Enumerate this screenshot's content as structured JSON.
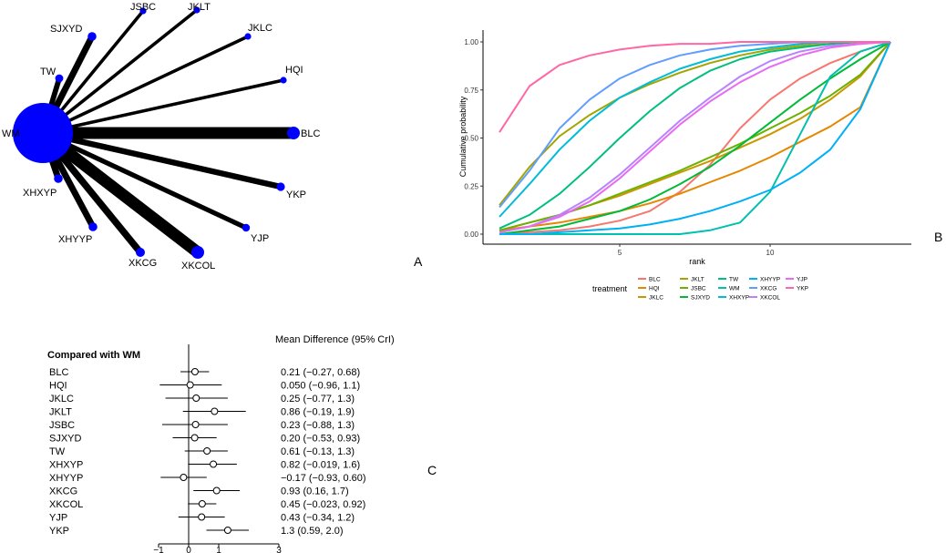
{
  "panel_labels": {
    "a": "A",
    "b": "B",
    "c": "C"
  },
  "chart_data": [
    {
      "type": "network",
      "center": "WM",
      "nodes": [
        {
          "name": "BLC",
          "weight": 1.0
        },
        {
          "name": "HQI",
          "weight": 0.15
        },
        {
          "name": "JKLC",
          "weight": 0.15
        },
        {
          "name": "JKLT",
          "weight": 0.15
        },
        {
          "name": "JSBC",
          "weight": 0.15
        },
        {
          "name": "SJXYD",
          "weight": 0.45
        },
        {
          "name": "TW",
          "weight": 0.35
        },
        {
          "name": "XHXYP",
          "weight": 0.45
        },
        {
          "name": "XHYYP",
          "weight": 0.45
        },
        {
          "name": "XKCG",
          "weight": 0.5
        },
        {
          "name": "XKCOL",
          "weight": 1.0
        },
        {
          "name": "YJP",
          "weight": 0.3
        },
        {
          "name": "YKP",
          "weight": 0.4
        }
      ]
    },
    {
      "type": "line",
      "xlabel": "rank",
      "ylabel": "Cumulative probability",
      "xlim": [
        1,
        14
      ],
      "ylim": [
        0,
        1
      ],
      "xticks": [
        5,
        10
      ],
      "yticks": [
        "0.00",
        "0.25",
        "0.50",
        "0.75",
        "1.00"
      ],
      "legend_title": "treatment",
      "x": [
        1,
        2,
        3,
        4,
        5,
        6,
        7,
        8,
        9,
        10,
        11,
        12,
        13,
        14
      ],
      "series": [
        {
          "name": "BLC",
          "color": "#F8766D",
          "values": [
            0.0,
            0.01,
            0.02,
            0.04,
            0.07,
            0.12,
            0.22,
            0.36,
            0.55,
            0.7,
            0.81,
            0.89,
            0.95,
            1.0
          ]
        },
        {
          "name": "HQI",
          "color": "#E58700",
          "values": [
            0.02,
            0.04,
            0.06,
            0.09,
            0.12,
            0.16,
            0.21,
            0.27,
            0.33,
            0.4,
            0.48,
            0.56,
            0.66,
            1.0
          ]
        },
        {
          "name": "JKLC",
          "color": "#C99800",
          "values": [
            0.02,
            0.06,
            0.1,
            0.15,
            0.2,
            0.26,
            0.32,
            0.38,
            0.45,
            0.52,
            0.6,
            0.7,
            0.82,
            1.0
          ]
        },
        {
          "name": "JKLT",
          "color": "#A3A500",
          "values": [
            0.15,
            0.35,
            0.51,
            0.62,
            0.71,
            0.78,
            0.84,
            0.89,
            0.93,
            0.96,
            0.98,
            0.99,
            1.0,
            1.0
          ]
        },
        {
          "name": "JSBC",
          "color": "#6BB100",
          "values": [
            0.02,
            0.06,
            0.1,
            0.15,
            0.21,
            0.27,
            0.33,
            0.4,
            0.47,
            0.55,
            0.63,
            0.72,
            0.83,
            1.0
          ]
        },
        {
          "name": "SJXYD",
          "color": "#00BA38",
          "values": [
            0.0,
            0.02,
            0.04,
            0.08,
            0.12,
            0.18,
            0.26,
            0.35,
            0.46,
            0.58,
            0.7,
            0.81,
            0.91,
            1.0
          ]
        },
        {
          "name": "TW",
          "color": "#00BF7D",
          "values": [
            0.03,
            0.1,
            0.21,
            0.35,
            0.5,
            0.64,
            0.76,
            0.85,
            0.91,
            0.95,
            0.97,
            0.99,
            1.0,
            1.0
          ]
        },
        {
          "name": "WM",
          "color": "#00C0AF",
          "values": [
            0.0,
            0.0,
            0.0,
            0.0,
            0.0,
            0.0,
            0.0,
            0.02,
            0.06,
            0.22,
            0.52,
            0.82,
            0.95,
            1.0
          ]
        },
        {
          "name": "XHXYP",
          "color": "#00BCD8",
          "values": [
            0.09,
            0.26,
            0.44,
            0.59,
            0.71,
            0.79,
            0.86,
            0.91,
            0.95,
            0.97,
            0.99,
            1.0,
            1.0,
            1.0
          ]
        },
        {
          "name": "XHYYP",
          "color": "#00B0F6",
          "values": [
            0.0,
            0.0,
            0.01,
            0.02,
            0.03,
            0.05,
            0.08,
            0.12,
            0.17,
            0.23,
            0.32,
            0.44,
            0.65,
            1.0
          ]
        },
        {
          "name": "XKCG",
          "color": "#619CFF",
          "values": [
            0.14,
            0.33,
            0.55,
            0.7,
            0.81,
            0.88,
            0.93,
            0.96,
            0.98,
            0.99,
            1.0,
            1.0,
            1.0,
            1.0
          ]
        },
        {
          "name": "XKCOL",
          "color": "#B983FF",
          "values": [
            0.01,
            0.04,
            0.1,
            0.19,
            0.31,
            0.45,
            0.59,
            0.71,
            0.82,
            0.9,
            0.95,
            0.98,
            0.99,
            1.0
          ]
        },
        {
          "name": "YJP",
          "color": "#E76BF3",
          "values": [
            0.01,
            0.04,
            0.09,
            0.17,
            0.29,
            0.43,
            0.57,
            0.69,
            0.79,
            0.87,
            0.93,
            0.97,
            0.99,
            1.0
          ]
        },
        {
          "name": "YKP",
          "color": "#FF67A4",
          "values": [
            0.53,
            0.77,
            0.88,
            0.93,
            0.96,
            0.98,
            0.99,
            0.99,
            1.0,
            1.0,
            1.0,
            1.0,
            1.0,
            1.0
          ]
        }
      ]
    },
    {
      "type": "forest",
      "title": "Mean Difference (95% CrI)",
      "subtitle": "Compared with WM",
      "xlim": [
        -1,
        3
      ],
      "xticks": [
        -1,
        0,
        1,
        3
      ],
      "rows": [
        {
          "name": "BLC",
          "est": 0.21,
          "lo": -0.27,
          "hi": 0.68,
          "label": "0.21 (−0.27, 0.68)"
        },
        {
          "name": "HQI",
          "est": 0.05,
          "lo": -0.96,
          "hi": 1.1,
          "label": "0.050 (−0.96, 1.1)"
        },
        {
          "name": "JKLC",
          "est": 0.25,
          "lo": -0.77,
          "hi": 1.3,
          "label": "0.25 (−0.77, 1.3)"
        },
        {
          "name": "JKLT",
          "est": 0.86,
          "lo": -0.19,
          "hi": 1.9,
          "label": "0.86 (−0.19, 1.9)"
        },
        {
          "name": "JSBC",
          "est": 0.23,
          "lo": -0.88,
          "hi": 1.3,
          "label": "0.23 (−0.88, 1.3)"
        },
        {
          "name": "SJXYD",
          "est": 0.2,
          "lo": -0.53,
          "hi": 0.93,
          "label": "0.20 (−0.53, 0.93)"
        },
        {
          "name": "TW",
          "est": 0.61,
          "lo": -0.13,
          "hi": 1.3,
          "label": "0.61 (−0.13, 1.3)"
        },
        {
          "name": "XHXYP",
          "est": 0.82,
          "lo": -0.019,
          "hi": 1.6,
          "label": "0.82 (−0.019, 1.6)"
        },
        {
          "name": "XHYYP",
          "est": -0.17,
          "lo": -0.93,
          "hi": 0.6,
          "label": "−0.17 (−0.93, 0.60)"
        },
        {
          "name": "XKCG",
          "est": 0.93,
          "lo": 0.16,
          "hi": 1.7,
          "label": "0.93 (0.16, 1.7)"
        },
        {
          "name": "XKCOL",
          "est": 0.45,
          "lo": -0.023,
          "hi": 0.92,
          "label": "0.45 (−0.023, 0.92)"
        },
        {
          "name": "YJP",
          "est": 0.43,
          "lo": -0.34,
          "hi": 1.2,
          "label": "0.43 (−0.34, 1.2)"
        },
        {
          "name": "YKP",
          "est": 1.3,
          "lo": 0.59,
          "hi": 2.0,
          "label": "1.3 (0.59, 2.0)"
        }
      ]
    }
  ]
}
